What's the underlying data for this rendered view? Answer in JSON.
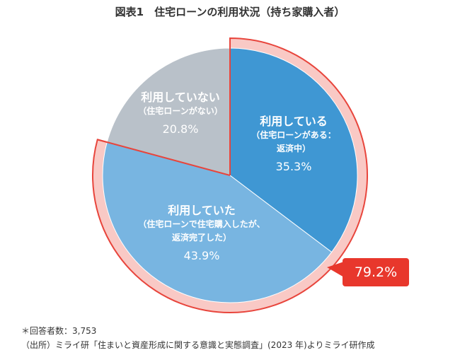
{
  "title": "図表1　住宅ローンの利用状況（持ち家購入者）",
  "chart_data": {
    "type": "pie",
    "title": "図表1　住宅ローンの利用状況（持ち家購入者）",
    "slices": [
      {
        "label": "利用している",
        "sub": "（住宅ローンがある：",
        "sub2": "返済中）",
        "value": 35.3,
        "value_label": "35.3%",
        "color": "#3f97d3"
      },
      {
        "label": "利用していた",
        "sub": "（住宅ローンで住宅購入したが、",
        "sub2": "返済完了した）",
        "value": 43.9,
        "value_label": "43.9%",
        "color": "#78b5e1"
      },
      {
        "label": "利用していない",
        "sub": "（住宅ローンがない）",
        "sub2": "",
        "value": 20.8,
        "value_label": "20.8%",
        "color": "#b9c1c9"
      }
    ],
    "highlight": {
      "value": 79.2,
      "label": "79.2%",
      "ring_color": "#f9c9c5",
      "border_color": "#e8453c"
    }
  },
  "notes": {
    "respondents": "＊回答者数：3,753",
    "source": "（出所）ミライ研「住まいと資産形成に関する意識と実態調査」(2023 年)よりミライ研作成"
  }
}
